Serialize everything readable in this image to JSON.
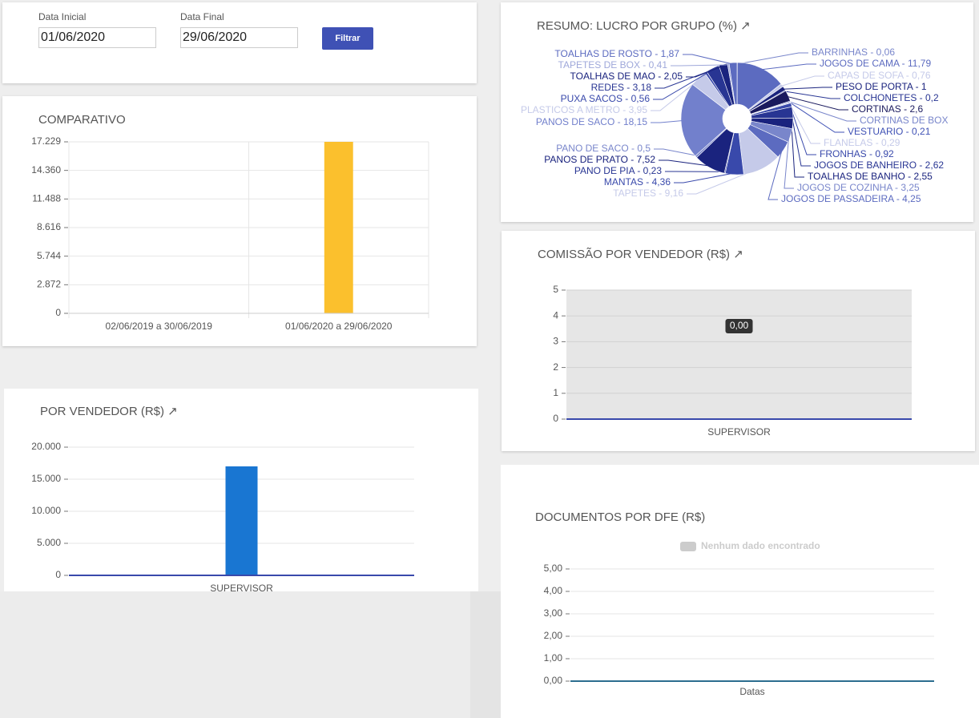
{
  "filter": {
    "start_label": "Data Inicial",
    "start_value": "01/06/2020",
    "end_label": "Data Final",
    "end_value": "29/06/2020",
    "button": "Filtrar"
  },
  "chart_data": [
    {
      "type": "bar",
      "title": "COMPARATIVO",
      "categories": [
        "02/06/2019 a 30/06/2019",
        "01/06/2020 a 29/06/2020"
      ],
      "values": [
        0,
        17229
      ],
      "color": "#fbc02d",
      "ylim": [
        0,
        17229
      ],
      "yticks": [
        0,
        {
          "value": 2872,
          "label": "2.872"
        },
        {
          "value": 5744,
          "label": "5.744"
        },
        {
          "value": 8616,
          "label": "8.616"
        },
        {
          "value": 11488,
          "label": "11.488"
        },
        {
          "value": 14360,
          "label": "14.360"
        },
        {
          "value": 17229,
          "label": "17.229"
        }
      ],
      "grid": true,
      "xgrid": true,
      "axis_color": "#cccccc"
    },
    {
      "type": "pie",
      "title": "RESUMO: LUCRO POR GRUPO (%) ↗",
      "values": [
        0.06,
        11.79,
        0.76,
        1,
        0.2,
        2.6,
        null,
        0.21,
        0.29,
        0.92,
        2.62,
        2.55,
        3.25,
        4.25,
        9.16,
        4.36,
        0.23,
        7.52,
        0.5,
        18.15,
        3.95,
        0.56,
        3.18,
        2.05,
        0.41,
        1.87
      ],
      "value_labels": [
        "BARRINHAS - 0,06",
        "JOGOS DE CAMA - 11,79",
        "CAPAS DE SOFA - 0,76",
        "PESO DE PORTA - 1",
        "COLCHONETES - 0,2",
        "CORTINAS - 2,6",
        "CORTINAS DE BOX",
        "VESTUARIO - 0,21",
        "FLANELAS - 0,29",
        "FRONHAS - 0,92",
        "JOGOS DE BANHEIRO - 2,62",
        "TOALHAS DE BANHO - 2,55",
        "JOGOS DE COZINHA - 3,25",
        "JOGOS DE PASSADEIRA - 4,25",
        "TAPETES - 9,16",
        "MANTAS - 4,36",
        "PANO DE PIA - 0,23",
        "PANOS DE PRATO - 7,52",
        "PANO DE SACO - 0,5",
        "PANOS DE SACO - 18,15",
        "PLASTICOS A METRO - 3,95",
        "PUXA SACOS - 0,56",
        "REDES - 3,18",
        "TOALHAS DE MAO - 2,05",
        "TAPETES DE BOX - 0,41",
        "TOALHAS DE ROSTO - 1,87"
      ],
      "colors": [
        "#7986cb",
        "#5c6bc0",
        "#c5cae9",
        "#1a237e",
        "#283593",
        "#1a1a5e",
        "#7986cb",
        "#3f51b5",
        "#c5cae9",
        "#3949ab",
        "#283593",
        "#1a237e",
        "#7986cb",
        "#5c6bc0",
        "#c5cae9",
        "#3949ab",
        "#283593",
        "#1a237e",
        "#7986cb",
        "#7280cc",
        "#c5cae9",
        "#3949ab",
        "#283593",
        "#1a237e",
        "#9fa8da",
        "#5c6bc0"
      ]
    },
    {
      "type": "bar",
      "title": "POR VENDEDOR (R$) ↗",
      "categories": [
        "SUPERVISOR"
      ],
      "values": [
        17000
      ],
      "color": "#1976d2",
      "ylim": [
        0,
        20000
      ],
      "yticks": [
        0,
        {
          "value": 5000,
          "label": "5.000"
        },
        {
          "value": 10000,
          "label": "10.000"
        },
        {
          "value": 15000,
          "label": "15.000"
        },
        {
          "value": 20000,
          "label": "20.000"
        }
      ],
      "grid": true,
      "axis_color": "#3949ab"
    },
    {
      "type": "bar",
      "title": "COMISSÃO POR VENDEDOR (R$) ↗",
      "categories": [
        "SUPERVISOR"
      ],
      "values": [
        0
      ],
      "value_labels": [
        "0,00"
      ],
      "color": "#3949ab",
      "ylim": [
        0,
        5
      ],
      "yticks": [
        0,
        1,
        2,
        3,
        4,
        5
      ],
      "grid": true,
      "plot_background": "#e6e6e6",
      "axis_color": "#3949ab"
    },
    {
      "type": "bar",
      "title": "DOCUMENTOS POR DFE (R$)",
      "xlabel": "Datas",
      "categories": [],
      "series": [
        {
          "name": "Nenhum dado encontrado",
          "color": "#cccccc",
          "values": []
        }
      ],
      "ylim": [
        0,
        5
      ],
      "yticks": [
        {
          "value": 0,
          "label": "0,00"
        },
        {
          "value": 1,
          "label": "1,00"
        },
        {
          "value": 2,
          "label": "2,00"
        },
        {
          "value": 3,
          "label": "3,00"
        },
        {
          "value": 4,
          "label": "4,00"
        },
        {
          "value": 5,
          "label": "5,00"
        }
      ],
      "grid": true,
      "axis_color": "#2c6e8f"
    }
  ]
}
